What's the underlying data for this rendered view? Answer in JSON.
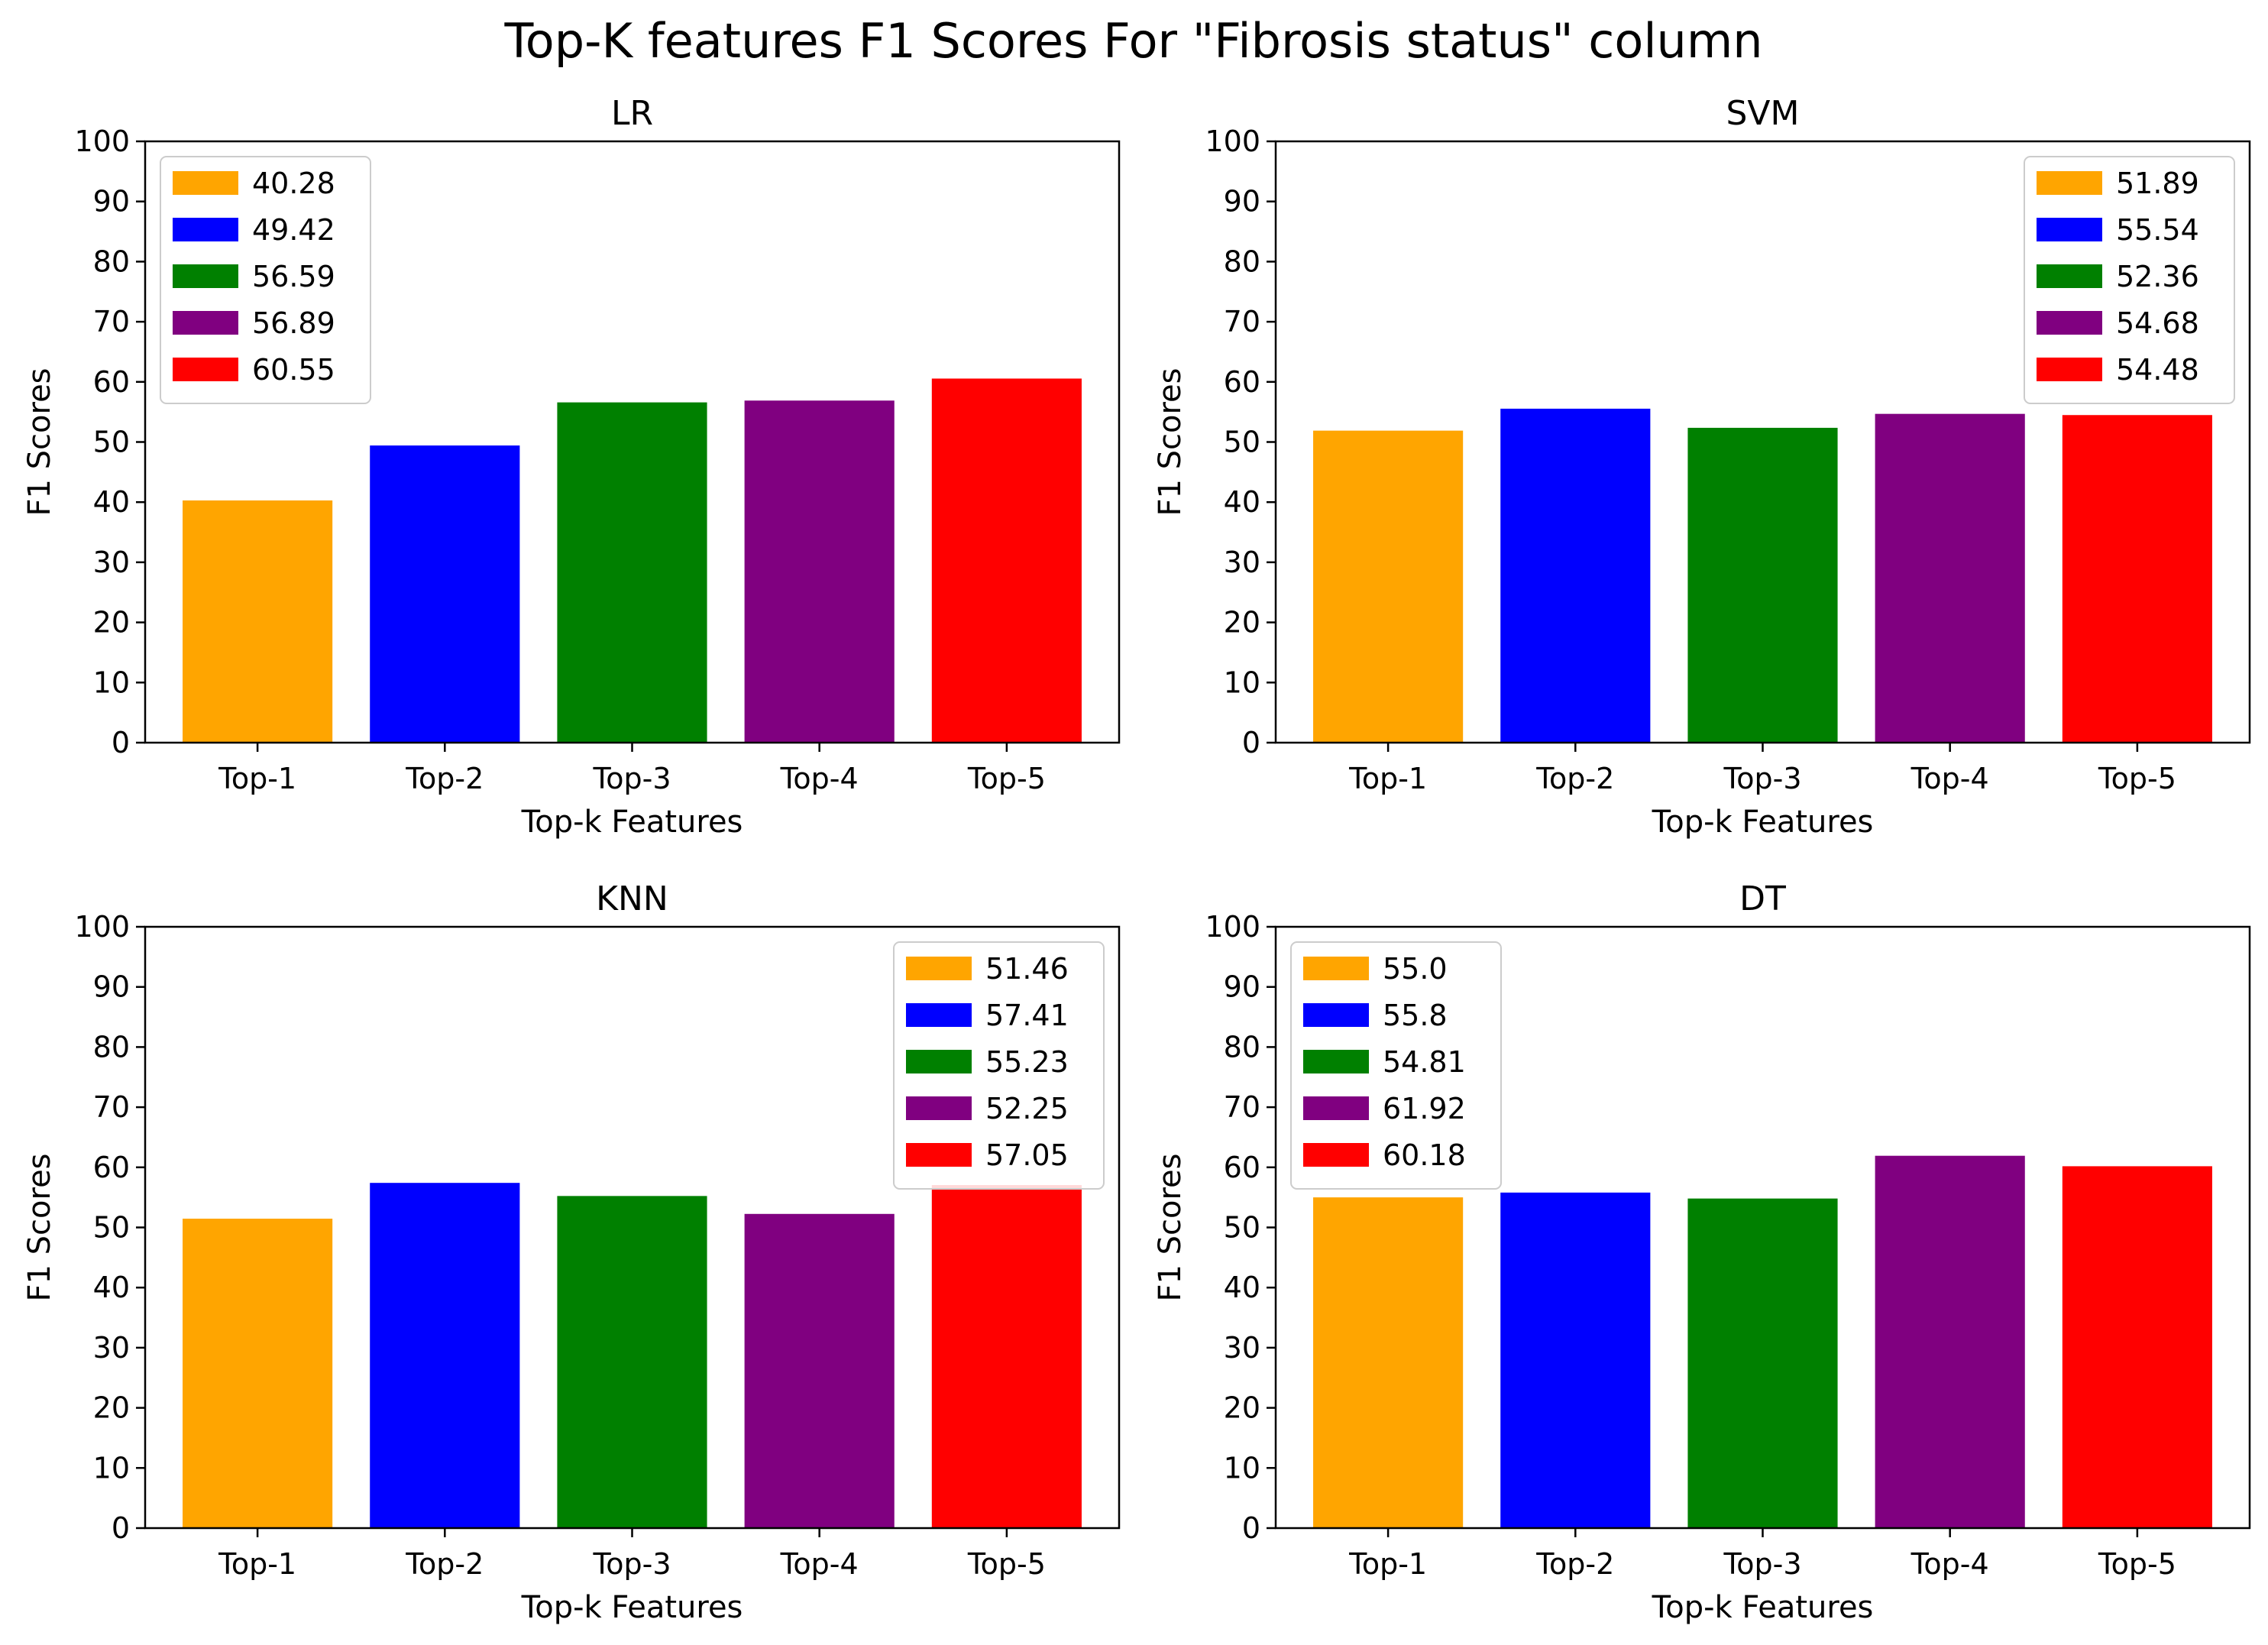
{
  "figure": {
    "title": "Top-K features F1 Scores For \"Fibrosis status\" column"
  },
  "chart_data": [
    {
      "type": "bar",
      "title": "LR",
      "xlabel": "Top-k Features",
      "ylabel": "F1 Scores",
      "categories": [
        "Top-1",
        "Top-2",
        "Top-3",
        "Top-4",
        "Top-5"
      ],
      "values": [
        40.28,
        49.42,
        56.59,
        56.89,
        60.55
      ],
      "colors": [
        "#ffa500",
        "#0000ff",
        "#008000",
        "#800080",
        "#ff0000"
      ],
      "legend": [
        "40.28",
        "49.42",
        "56.59",
        "56.89",
        "60.55"
      ],
      "legend_loc": "upper left",
      "ylim": [
        0,
        100
      ],
      "yticks": [
        "0",
        "10",
        "20",
        "30",
        "40",
        "50",
        "60",
        "70",
        "80",
        "90",
        "100"
      ],
      "grid": false
    },
    {
      "type": "bar",
      "title": "SVM",
      "xlabel": "Top-k Features",
      "ylabel": "F1 Scores",
      "categories": [
        "Top-1",
        "Top-2",
        "Top-3",
        "Top-4",
        "Top-5"
      ],
      "values": [
        51.89,
        55.54,
        52.36,
        54.68,
        54.48
      ],
      "colors": [
        "#ffa500",
        "#0000ff",
        "#008000",
        "#800080",
        "#ff0000"
      ],
      "legend": [
        "51.89",
        "55.54",
        "52.36",
        "54.68",
        "54.48"
      ],
      "legend_loc": "upper right",
      "ylim": [
        0,
        100
      ],
      "yticks": [
        "0",
        "10",
        "20",
        "30",
        "40",
        "50",
        "60",
        "70",
        "80",
        "90",
        "100"
      ],
      "grid": false
    },
    {
      "type": "bar",
      "title": "KNN",
      "xlabel": "Top-k Features",
      "ylabel": "F1 Scores",
      "categories": [
        "Top-1",
        "Top-2",
        "Top-3",
        "Top-4",
        "Top-5"
      ],
      "values": [
        51.46,
        57.41,
        55.23,
        52.25,
        57.05
      ],
      "colors": [
        "#ffa500",
        "#0000ff",
        "#008000",
        "#800080",
        "#ff0000"
      ],
      "legend": [
        "51.46",
        "57.41",
        "55.23",
        "52.25",
        "57.05"
      ],
      "legend_loc": "upper right",
      "ylim": [
        0,
        100
      ],
      "yticks": [
        "0",
        "10",
        "20",
        "30",
        "40",
        "50",
        "60",
        "70",
        "80",
        "90",
        "100"
      ],
      "grid": false
    },
    {
      "type": "bar",
      "title": "DT",
      "xlabel": "Top-k Features",
      "ylabel": "F1 Scores",
      "categories": [
        "Top-1",
        "Top-2",
        "Top-3",
        "Top-4",
        "Top-5"
      ],
      "values": [
        55.0,
        55.8,
        54.81,
        61.92,
        60.18
      ],
      "colors": [
        "#ffa500",
        "#0000ff",
        "#008000",
        "#800080",
        "#ff0000"
      ],
      "legend": [
        "55.0",
        "55.8",
        "54.81",
        "61.92",
        "60.18"
      ],
      "legend_loc": "upper left",
      "ylim": [
        0,
        100
      ],
      "yticks": [
        "0",
        "10",
        "20",
        "30",
        "40",
        "50",
        "60",
        "70",
        "80",
        "90",
        "100"
      ],
      "grid": false
    }
  ]
}
